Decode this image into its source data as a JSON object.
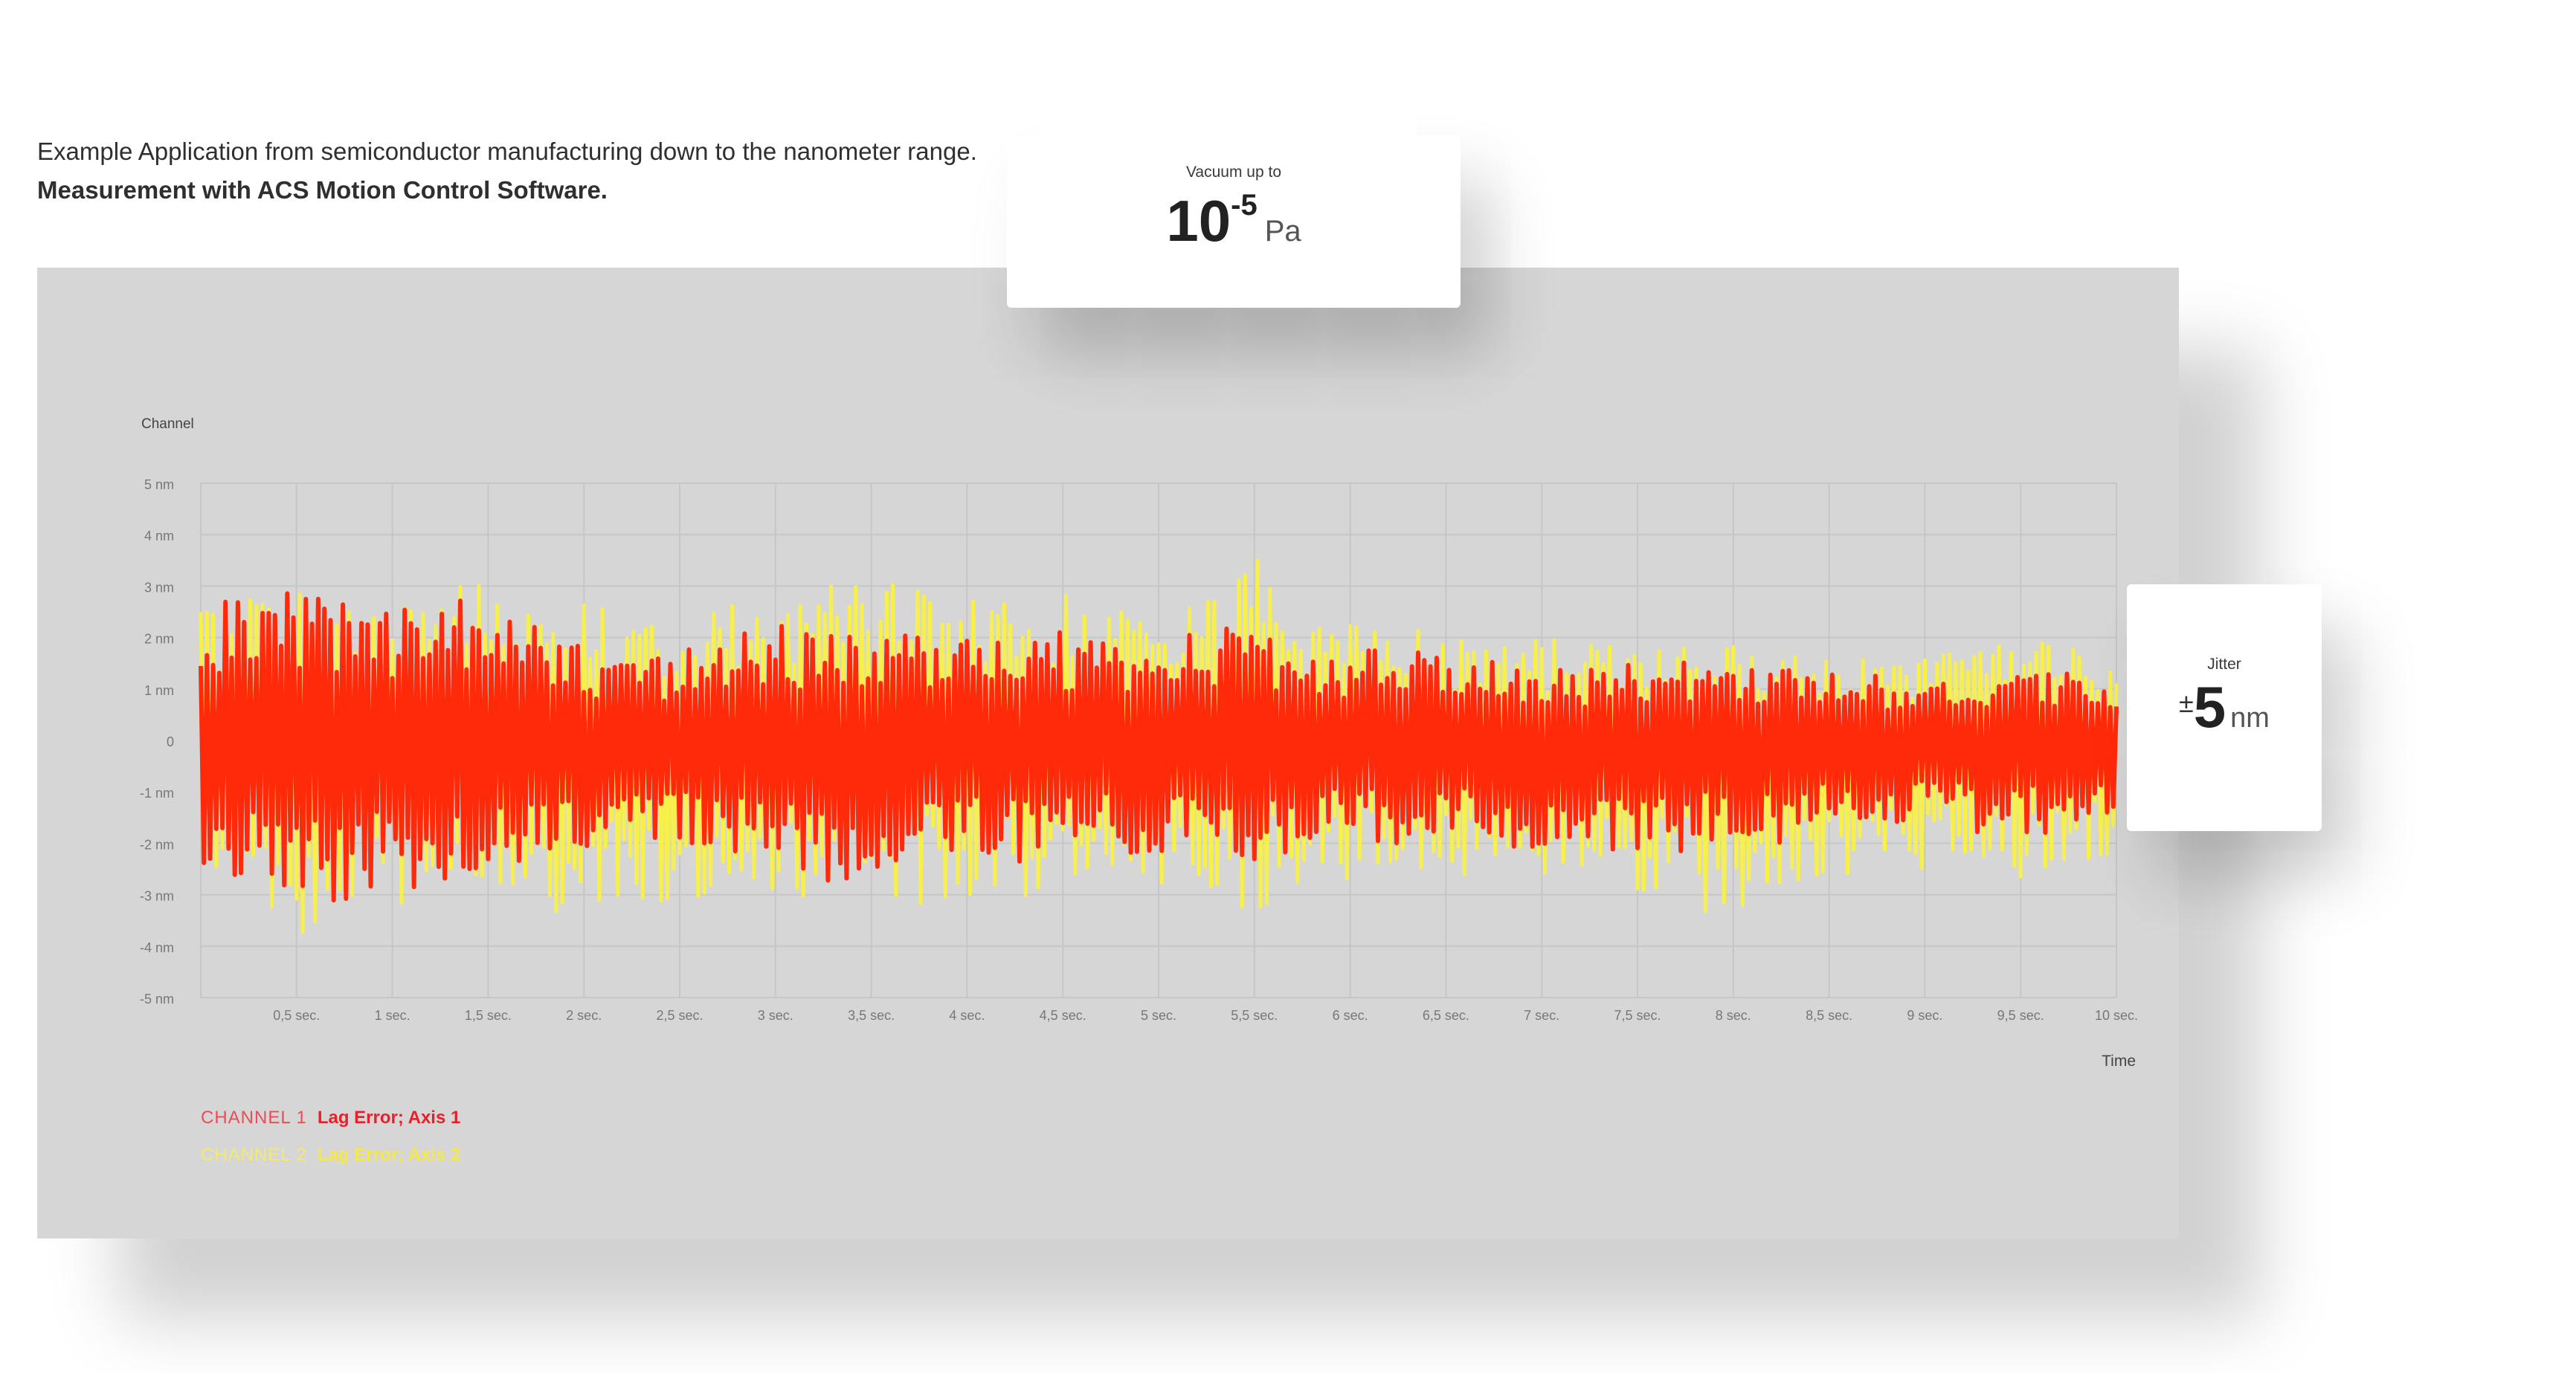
{
  "intro": {
    "line1": "Example Application from semiconductor manufacturing down to the nanometer range.",
    "line2": "Measurement with ACS Motion Control Software."
  },
  "vacuum_card": {
    "caption": "Vacuum up to",
    "base": "10",
    "exponent": "-5",
    "unit": "Pa"
  },
  "jitter_card": {
    "caption": "Jitter",
    "prefix": "±",
    "value": "5",
    "unit": "nm"
  },
  "legend": [
    {
      "channel": "CHANNEL 1",
      "text": "Lag Error; Axis 1",
      "color": "#ff2a0a"
    },
    {
      "channel": "CHANNEL 2",
      "text": "Lag Error; Axis 2",
      "color": "#f7ef4c"
    }
  ],
  "colors": {
    "panel_bg": "#d6d6d6",
    "grid": "#c6c6c6",
    "channel1": "#ff2a0a",
    "channel2": "#f7ef4c",
    "axis_text": "#777777"
  },
  "chart_data": {
    "type": "line",
    "ylabel": "Channel",
    "xlabel": "Time",
    "xlim": [
      0,
      10
    ],
    "ylim": [
      -5,
      5
    ],
    "grid": true,
    "legend_position": "bottom-left",
    "y_ticks": [
      {
        "v": 5,
        "label": "5 nm"
      },
      {
        "v": 4,
        "label": "4 nm"
      },
      {
        "v": 3,
        "label": "3 nm"
      },
      {
        "v": 2,
        "label": "2 nm"
      },
      {
        "v": 1,
        "label": "1 nm"
      },
      {
        "v": 0,
        "label": "0"
      },
      {
        "v": -1,
        "label": "-1 nm"
      },
      {
        "v": -2,
        "label": "-2 nm"
      },
      {
        "v": -3,
        "label": "-3 nm"
      },
      {
        "v": -4,
        "label": "-4 nm"
      },
      {
        "v": -5,
        "label": "-5 nm"
      }
    ],
    "x_ticks": [
      {
        "v": 0.5,
        "label": "0,5 sec."
      },
      {
        "v": 1,
        "label": "1 sec."
      },
      {
        "v": 1.5,
        "label": "1,5 sec."
      },
      {
        "v": 2,
        "label": "2 sec."
      },
      {
        "v": 2.5,
        "label": "2,5 sec."
      },
      {
        "v": 3,
        "label": "3 sec."
      },
      {
        "v": 3.5,
        "label": "3,5 sec."
      },
      {
        "v": 4,
        "label": "4 sec."
      },
      {
        "v": 4.5,
        "label": "4,5 sec."
      },
      {
        "v": 5,
        "label": "5 sec."
      },
      {
        "v": 5.5,
        "label": "5,5 sec."
      },
      {
        "v": 6,
        "label": "6 sec."
      },
      {
        "v": 6.5,
        "label": "6,5 sec."
      },
      {
        "v": 7,
        "label": "7 sec."
      },
      {
        "v": 7.5,
        "label": "7,5 sec."
      },
      {
        "v": 8,
        "label": "8 sec."
      },
      {
        "v": 8.5,
        "label": "8,5 sec."
      },
      {
        "v": 9,
        "label": "9 sec."
      },
      {
        "v": 9.5,
        "label": "9,5 sec."
      },
      {
        "v": 10,
        "label": "10 sec."
      }
    ],
    "series": [
      {
        "name": "Lag Error; Axis 2",
        "color": "#f7ef4c",
        "x": [
          0,
          0.25,
          0.5,
          0.75,
          1,
          1.25,
          1.5,
          1.75,
          2,
          2.25,
          2.5,
          2.75,
          3,
          3.25,
          3.5,
          3.75,
          4,
          4.25,
          4.5,
          4.75,
          5,
          5.25,
          5.5,
          5.75,
          6,
          6.25,
          6.5,
          6.75,
          7,
          7.25,
          7.5,
          7.75,
          8,
          8.25,
          8.5,
          8.75,
          9,
          9.25,
          9.5,
          9.75,
          10
        ],
        "upper": [
          2.7,
          2.9,
          3.0,
          2.8,
          2.9,
          3.1,
          3.0,
          2.9,
          2.7,
          2.5,
          2.6,
          2.7,
          2.8,
          3.0,
          3.2,
          2.9,
          2.7,
          2.8,
          2.9,
          2.7,
          2.6,
          2.8,
          3.8,
          2.5,
          2.3,
          2.2,
          2.1,
          2.0,
          2.0,
          1.9,
          1.8,
          1.9,
          1.9,
          1.7,
          1.6,
          1.6,
          1.7,
          1.8,
          1.9,
          1.9,
          1.3
        ],
        "lower": [
          -2.8,
          -3.0,
          -3.9,
          -3.3,
          -3.2,
          -3.1,
          -3.0,
          -3.3,
          -3.7,
          -3.2,
          -3.1,
          -3.0,
          -2.9,
          -3.1,
          -3.3,
          -3.2,
          -3.0,
          -3.1,
          -3.0,
          -2.8,
          -2.9,
          -3.0,
          -3.4,
          -2.9,
          -2.7,
          -2.6,
          -2.7,
          -2.6,
          -2.8,
          -2.9,
          -3.0,
          -3.1,
          -3.7,
          -3.0,
          -2.7,
          -2.6,
          -2.6,
          -2.7,
          -2.7,
          -2.7,
          -2.2
        ]
      },
      {
        "name": "Lag Error; Axis 1",
        "color": "#ff2a0a",
        "x": [
          0,
          0.25,
          0.5,
          0.75,
          1,
          1.25,
          1.5,
          1.75,
          2,
          2.25,
          2.5,
          2.75,
          3,
          3.25,
          3.5,
          3.75,
          4,
          4.25,
          4.5,
          4.75,
          5,
          5.25,
          5.5,
          5.75,
          6,
          6.25,
          6.5,
          6.75,
          7,
          7.25,
          7.5,
          7.75,
          8,
          8.25,
          8.5,
          8.75,
          9,
          9.25,
          9.5,
          9.75,
          10
        ],
        "upper": [
          2.7,
          2.8,
          2.9,
          2.7,
          2.6,
          3.3,
          2.8,
          2.4,
          1.8,
          1.5,
          1.8,
          2.0,
          2.3,
          2.0,
          2.2,
          2.1,
          2.1,
          2.1,
          2.1,
          2.0,
          2.0,
          2.2,
          2.2,
          1.9,
          1.8,
          1.8,
          1.7,
          1.6,
          1.5,
          1.4,
          1.5,
          1.6,
          1.6,
          1.4,
          1.3,
          1.3,
          1.1,
          1.2,
          1.3,
          1.3,
          0.9
        ],
        "lower": [
          -2.7,
          -3.0,
          -3.3,
          -3.1,
          -3.0,
          -2.9,
          -2.8,
          -2.5,
          -2.3,
          -1.9,
          -2.0,
          -2.1,
          -2.5,
          -3.1,
          -2.6,
          -2.4,
          -2.3,
          -2.5,
          -2.4,
          -2.2,
          -2.2,
          -2.3,
          -2.4,
          -2.2,
          -2.0,
          -2.0,
          -2.0,
          -1.9,
          -2.3,
          -2.2,
          -2.1,
          -2.2,
          -2.2,
          -2.0,
          -1.8,
          -1.7,
          -1.7,
          -1.8,
          -1.9,
          -1.9,
          -1.8
        ]
      }
    ]
  }
}
